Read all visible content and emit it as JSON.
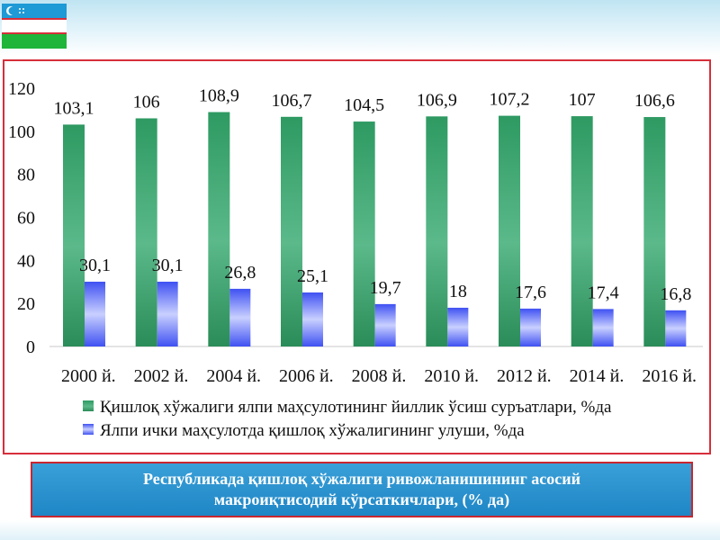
{
  "caption": {
    "text": "Республикада қишлоқ хўжалиги ривожланишининг асосий\nмакроиқтисодий кўрсаткичлари, (% да)"
  },
  "chart_data": {
    "type": "bar",
    "categories": [
      "2000 й.",
      "2002 й.",
      "2004 й.",
      "2006 й.",
      "2008 й.",
      "2010 й.",
      "2012 й.",
      "2014 й.",
      "2016 й."
    ],
    "series": [
      {
        "name": "Қишлоқ хўжалиги ялпи маҳсулотининг йиллик ўсиш суръатлари, %да",
        "values": [
          103.1,
          106,
          108.9,
          106.7,
          104.5,
          106.9,
          107.2,
          107,
          106.6
        ],
        "labels": [
          "103,1",
          "106",
          "108,9",
          "106,7",
          "104,5",
          "106,9",
          "107,2",
          "107",
          "106,6"
        ],
        "color": "#2e9a62"
      },
      {
        "name": "Ялпи ички маҳсулотда қишлоқ хўжалигининг улуши, %да",
        "values": [
          30.1,
          30.1,
          26.8,
          25.1,
          19.7,
          18,
          17.6,
          17.4,
          16.8
        ],
        "labels": [
          "30,1",
          "30,1",
          "26,8",
          "25,1",
          "19,7",
          "18",
          "17,6",
          "17,4",
          "16,8"
        ],
        "color": "#3f51f2"
      }
    ],
    "y_ticks": [
      "0",
      "20",
      "40",
      "60",
      "80",
      "100",
      "120"
    ],
    "ylim": [
      0,
      120
    ],
    "grid": false,
    "legend_position": "bottom"
  }
}
